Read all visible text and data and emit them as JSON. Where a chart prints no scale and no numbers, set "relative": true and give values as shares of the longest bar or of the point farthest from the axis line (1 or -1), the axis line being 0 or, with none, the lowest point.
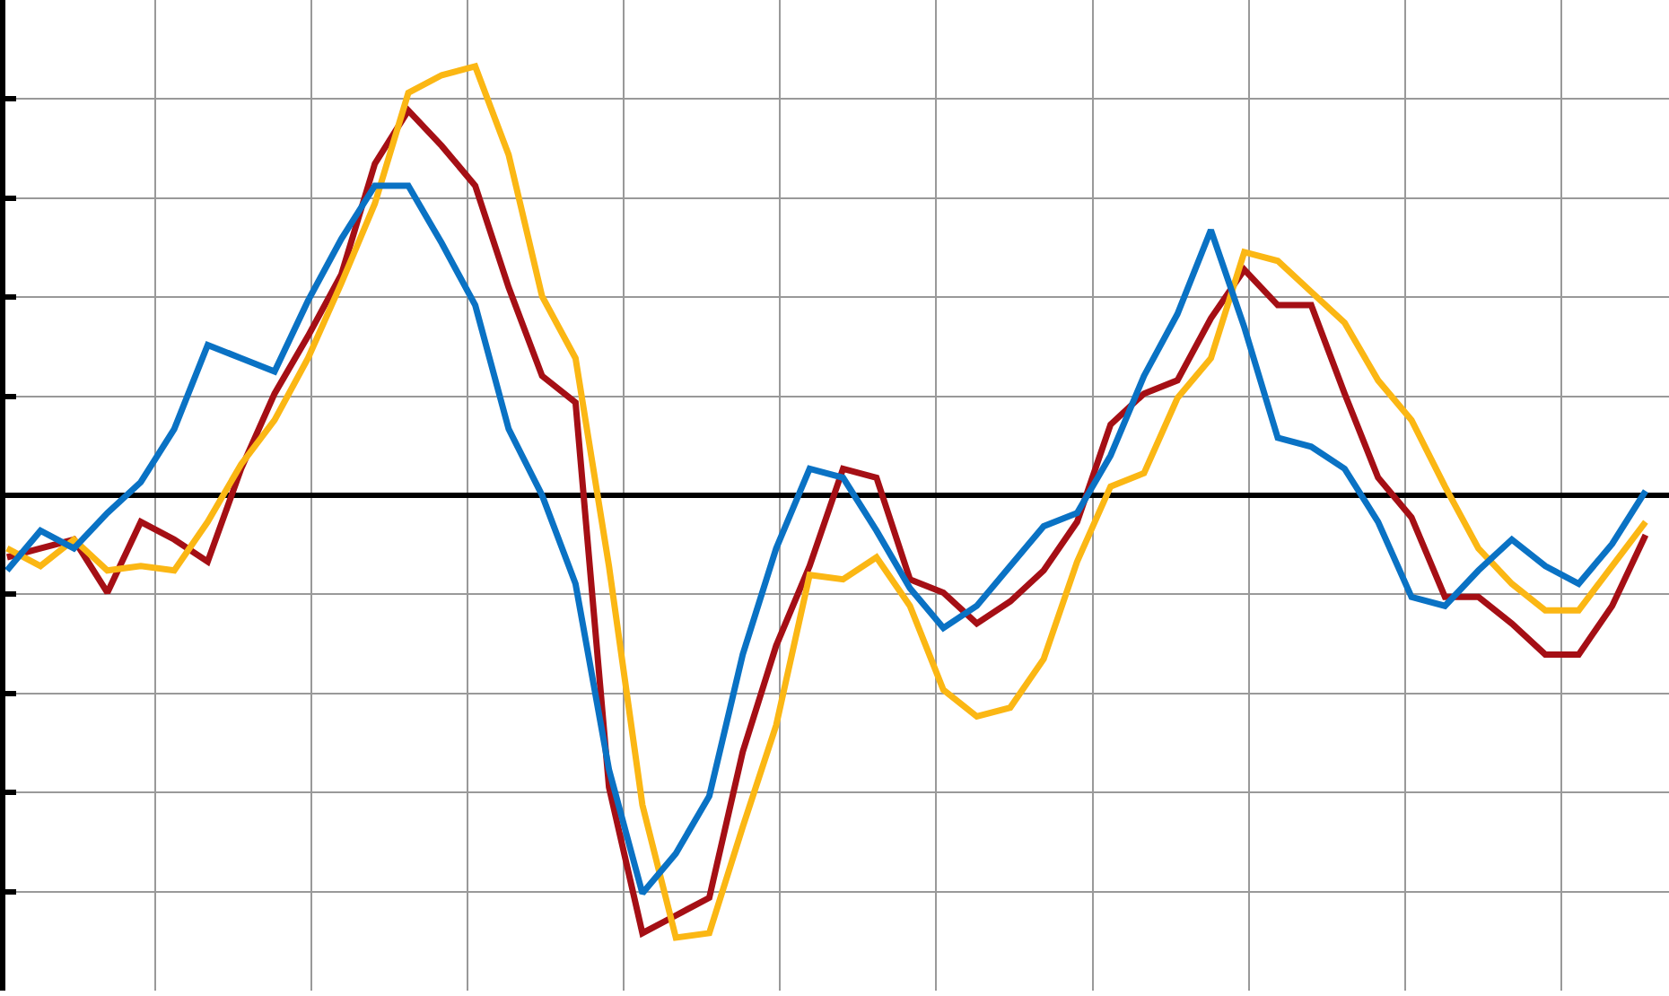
{
  "chart_data": {
    "type": "line",
    "relative": true,
    "grid": true,
    "tick_labels": false,
    "line_style": "solid",
    "marker": "none",
    "categories": [
      null,
      null,
      null,
      null,
      null,
      null,
      null,
      null,
      null,
      null,
      null,
      null,
      null,
      null,
      null,
      null,
      null,
      null,
      null,
      null,
      null,
      null,
      null,
      null,
      null,
      null,
      null,
      null,
      null,
      null,
      null,
      null,
      null,
      null,
      null,
      null,
      null,
      null,
      null,
      null,
      null,
      null,
      null,
      null,
      null,
      null,
      null,
      null,
      null,
      null
    ],
    "series": [
      {
        "color": "#a50f15",
        "values": [
          -0.14,
          -0.12,
          -0.1,
          -0.22,
          -0.06,
          -0.1,
          -0.15,
          0.06,
          0.23,
          0.36,
          0.5,
          0.75,
          0.87,
          0.79,
          0.7,
          0.47,
          0.27,
          0.21,
          -0.66,
          -0.99,
          -0.95,
          -0.91,
          -0.58,
          -0.34,
          -0.16,
          0.06,
          0.04,
          -0.19,
          -0.22,
          -0.29,
          -0.24,
          -0.17,
          -0.06,
          0.16,
          0.23,
          0.26,
          0.4,
          0.51,
          0.43,
          0.43,
          0.23,
          0.04,
          -0.05,
          -0.23,
          -0.23,
          -0.29,
          -0.36,
          -0.36,
          -0.25,
          -0.09
        ]
      },
      {
        "color": "#fbb714",
        "values": [
          -0.12,
          -0.16,
          -0.1,
          -0.17,
          -0.16,
          -0.17,
          -0.06,
          0.07,
          0.17,
          0.31,
          0.48,
          0.66,
          0.91,
          0.95,
          0.97,
          0.77,
          0.45,
          0.31,
          -0.16,
          -0.7,
          -1,
          -0.99,
          -0.75,
          -0.52,
          -0.18,
          -0.19,
          -0.14,
          -0.25,
          -0.44,
          -0.5,
          -0.48,
          -0.37,
          -0.15,
          0.02,
          0.05,
          0.22,
          0.31,
          0.55,
          0.53,
          0.46,
          0.39,
          0.26,
          0.17,
          0.02,
          -0.12,
          -0.2,
          -0.26,
          -0.26,
          -0.16,
          -0.06
        ]
      },
      {
        "color": "#0a72c4",
        "values": [
          -0.17,
          -0.08,
          -0.12,
          -0.04,
          0.03,
          0.15,
          0.34,
          0.31,
          0.28,
          0.44,
          0.58,
          0.7,
          0.7,
          0.57,
          0.43,
          0.15,
          0.0,
          -0.2,
          -0.62,
          -0.9,
          -0.81,
          -0.68,
          -0.36,
          -0.12,
          0.06,
          0.04,
          -0.08,
          -0.21,
          -0.3,
          -0.25,
          -0.16,
          -0.07,
          -0.04,
          0.09,
          0.27,
          0.41,
          0.6,
          0.38,
          0.13,
          0.11,
          0.06,
          -0.06,
          -0.23,
          -0.25,
          -0.17,
          -0.1,
          -0.16,
          -0.2,
          -0.11,
          0.01
        ]
      }
    ]
  }
}
